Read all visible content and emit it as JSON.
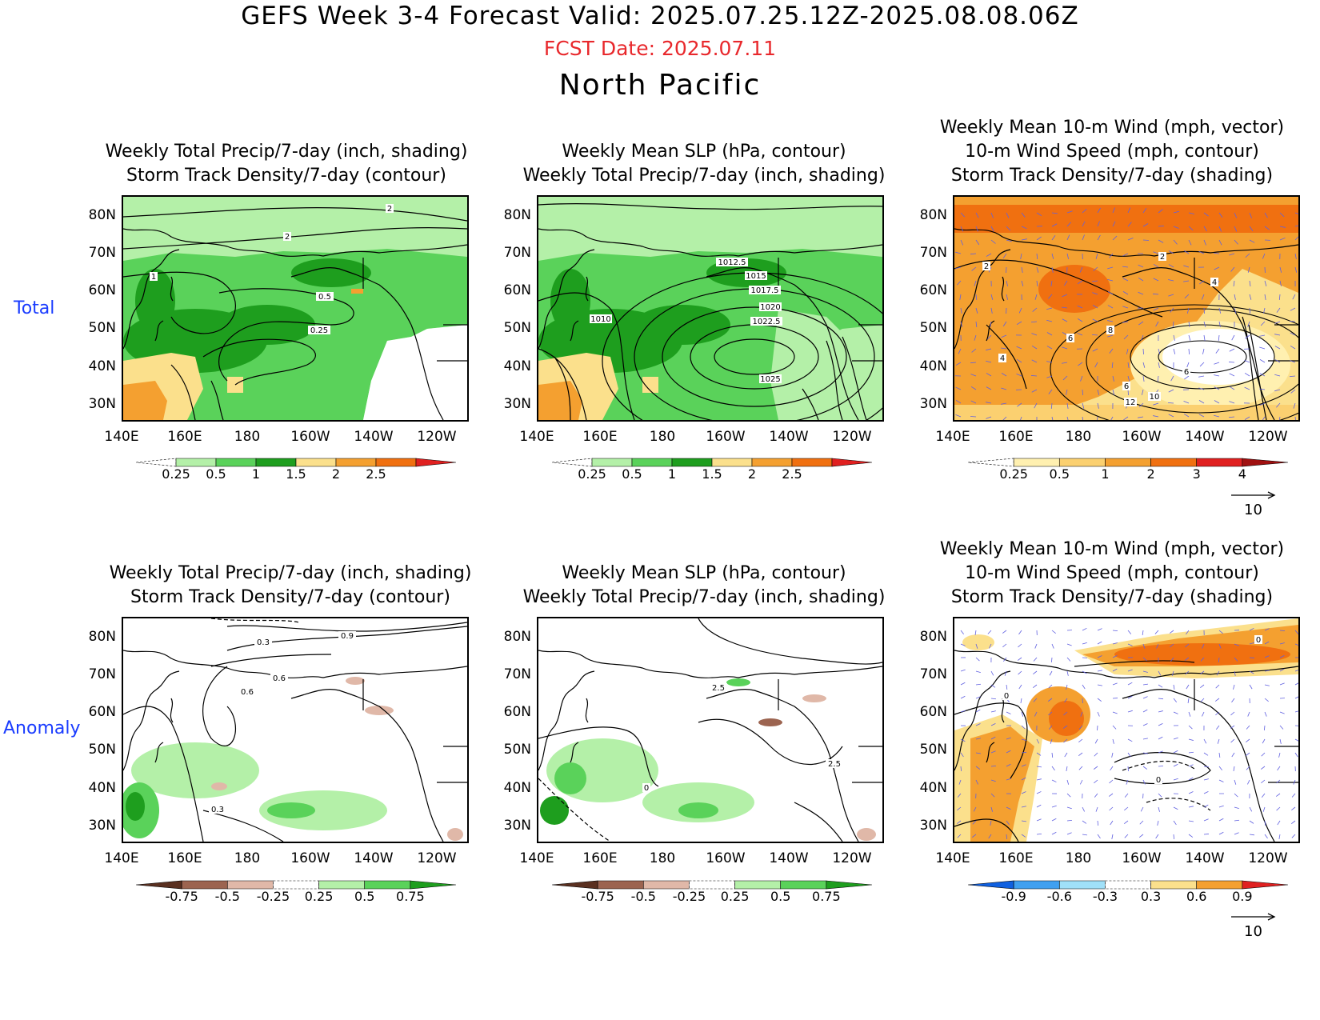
{
  "header": {
    "title": "GEFS Week 3-4 Forecast       Valid: 2025.07.25.12Z-2025.08.08.06Z",
    "fcst_date": "FCST Date: 2025.07.11",
    "region": "North Pacific"
  },
  "row_labels": {
    "total": "Total",
    "anomaly": "Anomaly"
  },
  "panel_titles": {
    "precip_storm": [
      "Weekly Total Precip/7-day (inch, shading)",
      "Storm Track Density/7-day (contour)"
    ],
    "slp_precip": [
      "Weekly Mean SLP (hPa, contour)",
      "Weekly Total Precip/7-day (inch, shading)"
    ],
    "wind": [
      "Weekly Mean 10-m Wind (mph, vector)",
      "10-m Wind Speed (mph, contour)",
      "Storm Track Density/7-day (shading)"
    ]
  },
  "axes": {
    "lat_ticks": [
      "80N",
      "70N",
      "60N",
      "50N",
      "40N",
      "30N"
    ],
    "lon_ticks": [
      "140E",
      "160E",
      "180",
      "160W",
      "140W",
      "120W"
    ]
  },
  "colorbars": {
    "precip_total": {
      "labels": [
        "0.25",
        "0.5",
        "1",
        "1.5",
        "2",
        "2.5"
      ],
      "colors": [
        "#ffffff",
        "#b4f0a8",
        "#5ad25a",
        "#1e9e1e",
        "#fbe08c",
        "#f4a030",
        "#f07010",
        "#e02020"
      ]
    },
    "precip_anomaly": {
      "labels": [
        "-0.75",
        "-0.5",
        "-0.25",
        "0.25",
        "0.5",
        "0.75"
      ],
      "colors": [
        "#5a3020",
        "#9c6450",
        "#e0b8a8",
        "#ffffff",
        "#b4f0a8",
        "#5ad25a",
        "#1e9e1e"
      ]
    },
    "storm_total": {
      "labels": [
        "0.25",
        "0.5",
        "1",
        "2",
        "3",
        "4"
      ],
      "colors": [
        "#ffffff",
        "#fff0b0",
        "#fbd070",
        "#f4a030",
        "#f07010",
        "#e02020",
        "#a01010"
      ]
    },
    "storm_anomaly": {
      "labels": [
        "-0.9",
        "-0.6",
        "-0.3",
        "0.3",
        "0.6",
        "0.9"
      ],
      "colors": [
        "#1060e0",
        "#40a0f0",
        "#a0e0f8",
        "#ffffff",
        "#fbe08c",
        "#f4a030",
        "#e02020"
      ]
    }
  },
  "contour_labels": {
    "p1": [
      "2",
      "2",
      "1",
      "0.5",
      "0.25"
    ],
    "p2": [
      "1012.5",
      "1015",
      "1017.5",
      "1020",
      "1022.5",
      "1025",
      "1010"
    ],
    "p3": [
      "2",
      "2",
      "4",
      "6",
      "8",
      "6",
      "6",
      "10",
      "12",
      "4"
    ],
    "p4": [
      "0.3",
      "0.9",
      "0.6",
      "0.6",
      "0.3"
    ],
    "p5": [
      "0",
      "2.5",
      "2.5"
    ],
    "p6": [
      "0",
      "0",
      "0"
    ]
  },
  "vector_reference": "10"
}
